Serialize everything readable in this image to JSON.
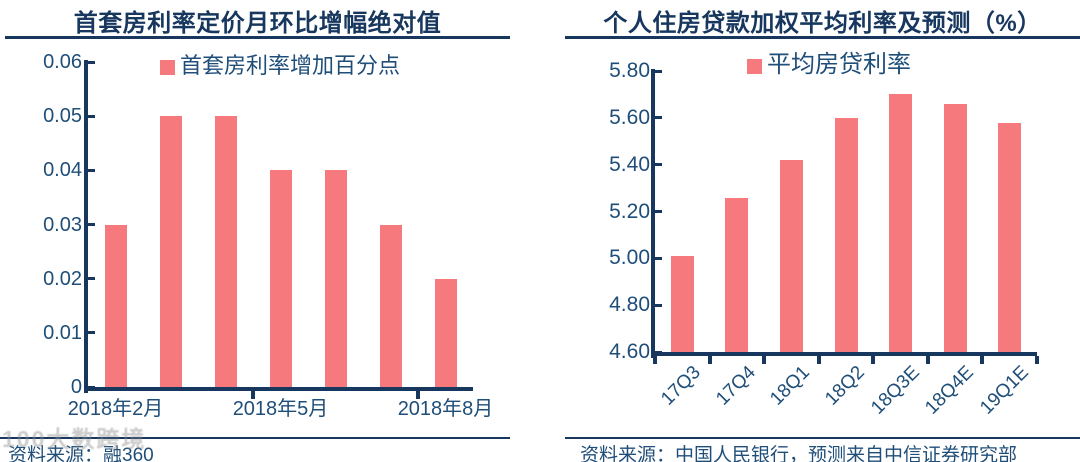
{
  "theme": {
    "bar_color": "#F5797D",
    "axis_color": "#17375E",
    "label_color": "#1F4E79",
    "title_color": "#17375E",
    "rule_color": "#17375E",
    "source_color": "#1F4E79",
    "watermark_color": "#8F8F8F"
  },
  "watermark": {
    "text": "100大数跨境"
  },
  "panels": [
    {
      "title": "首套房利率定价月环比增幅绝对值",
      "legend_label": "首套房利率增加百分点",
      "source": "资料来源：融360"
    },
    {
      "title": "个人住房贷款加权平均利率及预测（%）",
      "legend_label": "平均房贷利率",
      "source": "资料来源：中国人民银行，预测来自中信证券研究部"
    }
  ],
  "chart_data": [
    {
      "type": "bar",
      "title": "首套房利率定价月环比增幅绝对值",
      "series_name": "首套房利率增加百分点",
      "categories": [
        "2018年2月",
        "",
        "",
        "2018年5月",
        "",
        "",
        "2018年8月"
      ],
      "values": [
        0.03,
        0.05,
        0.05,
        0.04,
        0.04,
        0.03,
        0.02
      ],
      "xlabel": "",
      "ylabel": "",
      "ylim": [
        0,
        0.06
      ],
      "ytick_labels": [
        "0.06",
        "0.05",
        "0.04",
        "0.03",
        "0.02",
        "0.01",
        "0"
      ],
      "grid": false,
      "legend_position": "top",
      "x_label_rotation": 0
    },
    {
      "type": "bar",
      "title": "个人住房贷款加权平均利率及预测（%）",
      "series_name": "平均房贷利率",
      "categories": [
        "17Q3",
        "17Q4",
        "18Q1",
        "18Q2",
        "18Q3E",
        "18Q4E",
        "19Q1E"
      ],
      "values": [
        5.01,
        5.26,
        5.42,
        5.6,
        5.7,
        5.66,
        5.58
      ],
      "xlabel": "",
      "ylabel": "",
      "ylim": [
        4.6,
        5.8
      ],
      "ytick_labels": [
        "5.80",
        "5.60",
        "5.40",
        "5.20",
        "5.00",
        "4.80",
        "4.60"
      ],
      "grid": false,
      "legend_position": "top",
      "x_label_rotation": -45
    }
  ]
}
